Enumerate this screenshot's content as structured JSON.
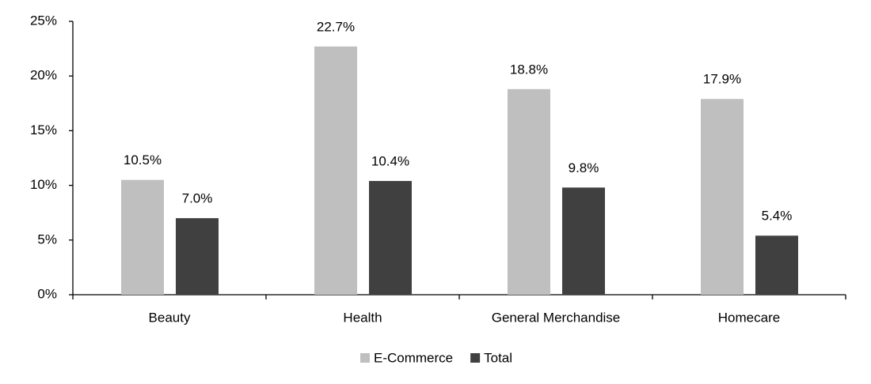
{
  "chart_data": {
    "type": "bar",
    "categories": [
      "Beauty",
      "Health",
      "General Merchandise",
      "Homecare"
    ],
    "series": [
      {
        "name": "E-Commerce",
        "color": "#bfbfbf",
        "values": [
          10.5,
          22.7,
          18.8,
          17.9
        ],
        "value_labels": [
          "10.5%",
          "22.7%",
          "18.8%",
          "17.9%"
        ]
      },
      {
        "name": "Total",
        "color": "#404040",
        "values": [
          7.0,
          10.4,
          9.8,
          5.4
        ],
        "value_labels": [
          "7.0%",
          "10.4%",
          "9.8%",
          "5.4%"
        ]
      }
    ],
    "ylim": [
      0,
      25
    ],
    "yticks": [
      {
        "value": 0,
        "label": "0%"
      },
      {
        "value": 5,
        "label": "5%"
      },
      {
        "value": 10,
        "label": "10%"
      },
      {
        "value": 15,
        "label": "15%"
      },
      {
        "value": 20,
        "label": "20%"
      },
      {
        "value": 25,
        "label": "25%"
      }
    ],
    "grid": false,
    "legend": "bottom"
  }
}
